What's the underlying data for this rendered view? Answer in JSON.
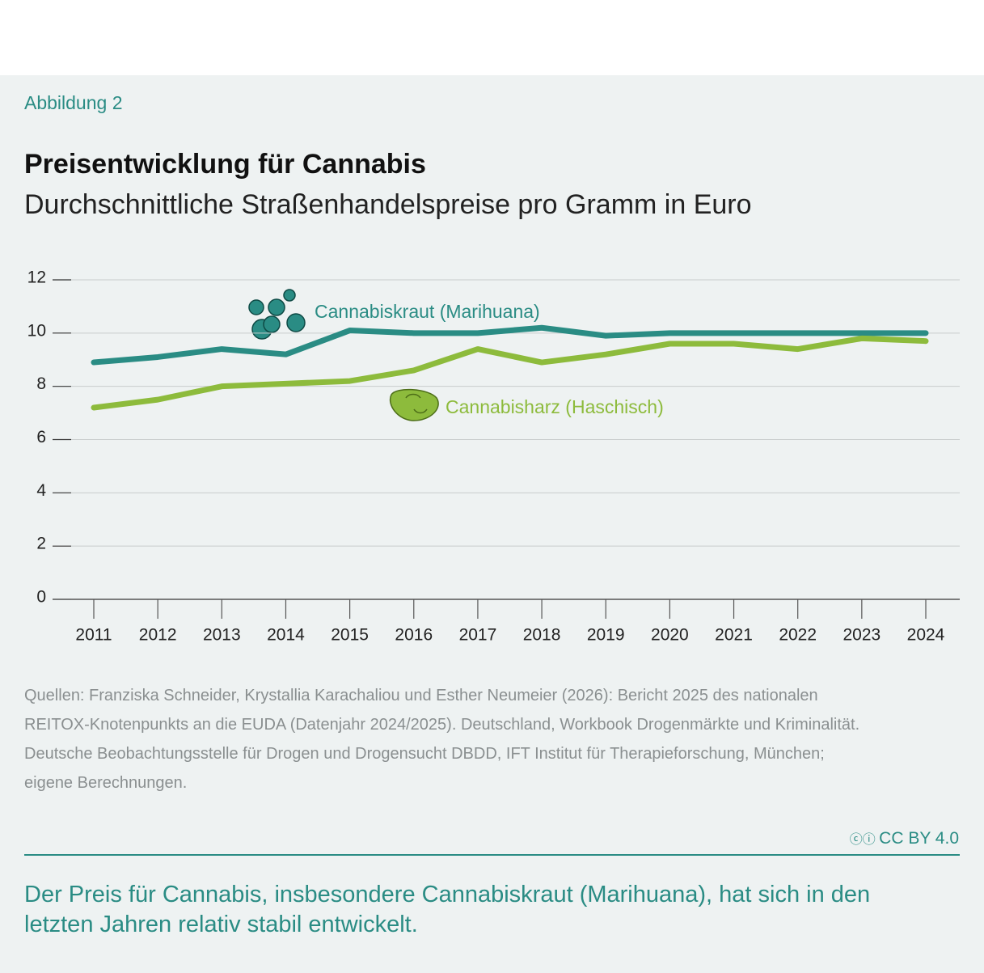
{
  "figure_label": "Abbildung 2",
  "chart_data": {
    "type": "line",
    "title": "Preisentwicklung für Cannabis",
    "subtitle": "Durchschnittliche Straßenhandelspreise pro Gramm in Euro",
    "categories": [
      "2011",
      "2012",
      "2013",
      "2014",
      "2015",
      "2016",
      "2017",
      "2018",
      "2019",
      "2020",
      "2021",
      "2022",
      "2023",
      "2024"
    ],
    "series": [
      {
        "name": "Cannabiskraut (Marihuana)",
        "color": "#2a8c84",
        "values": [
          8.9,
          9.1,
          9.4,
          9.2,
          10.1,
          10.0,
          10.0,
          10.2,
          9.9,
          10.0,
          10.0,
          10.0,
          10.0,
          10.0
        ]
      },
      {
        "name": "Cannabisharz (Haschisch)",
        "color": "#8dbb3c",
        "values": [
          7.2,
          7.5,
          8.0,
          8.1,
          8.2,
          8.6,
          9.4,
          8.9,
          9.2,
          9.6,
          9.6,
          9.4,
          9.8,
          9.7
        ]
      }
    ],
    "ylim": [
      0,
      12
    ],
    "yticks": [
      0,
      2,
      4,
      6,
      8,
      10,
      12
    ],
    "grid": true
  },
  "source_lines": [
    "Quellen: Franziska Schneider, Krystallia Karachaliou und Esther Neumeier (2026): Bericht 2025 des nationalen",
    "REITOX-Knotenpunkts an die EUDA (Datenjahr 2024/2025). Deutschland, Workbook Drogenmärkte und Kriminalität.",
    "Deutsche Beobachtungsstelle für Drogen und Drogensucht DBDD, IFT Institut für Therapieforschung, München;",
    "eigene Berechnungen."
  ],
  "license": "CC BY 4.0",
  "caption_lines": [
    "Der Preis für Cannabis, insbesondere Cannabiskraut (Marihuana), hat sich in den",
    "letzten Jahren relativ stabil entwickelt."
  ]
}
